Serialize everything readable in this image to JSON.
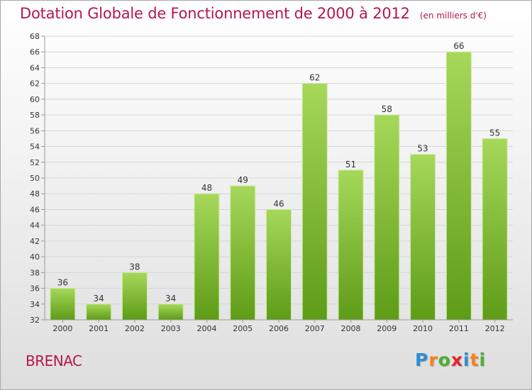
{
  "header": {
    "title": "Dotation Globale de Fonctionnement de 2000 à 2012",
    "subtitle": "(en milliers d'€)"
  },
  "footer": {
    "commune": "BRENAC",
    "brand_letters": [
      "P",
      "r",
      "o",
      "x",
      "i",
      "t",
      "i"
    ],
    "brand_colors": [
      "#2a8fd6",
      "#f58220",
      "#4caf32",
      "#e8232a",
      "#2a8fd6",
      "#f58220",
      "#4caf32"
    ]
  },
  "colors": {
    "title": "#b5174e",
    "bar_top": "#a6d85a",
    "bar_bottom": "#5e9c16",
    "grid": "#d5d5d5",
    "axis": "#999999"
  },
  "chart_data": {
    "type": "bar",
    "title": "Dotation Globale de Fonctionnement de 2000 à 2012",
    "subtitle": "(en milliers d'€)",
    "categories": [
      "2000",
      "2001",
      "2002",
      "2003",
      "2004",
      "2005",
      "2006",
      "2007",
      "2008",
      "2009",
      "2010",
      "2011",
      "2012"
    ],
    "values": [
      36,
      34,
      38,
      34,
      48,
      49,
      46,
      62,
      51,
      58,
      53,
      66,
      55
    ],
    "ylim": [
      32,
      68
    ],
    "yticks": [
      32,
      34,
      36,
      38,
      40,
      42,
      44,
      46,
      48,
      50,
      52,
      54,
      56,
      58,
      60,
      62,
      64,
      66,
      68
    ],
    "xlabel": "",
    "ylabel": "",
    "grid": true,
    "legend": "none"
  }
}
